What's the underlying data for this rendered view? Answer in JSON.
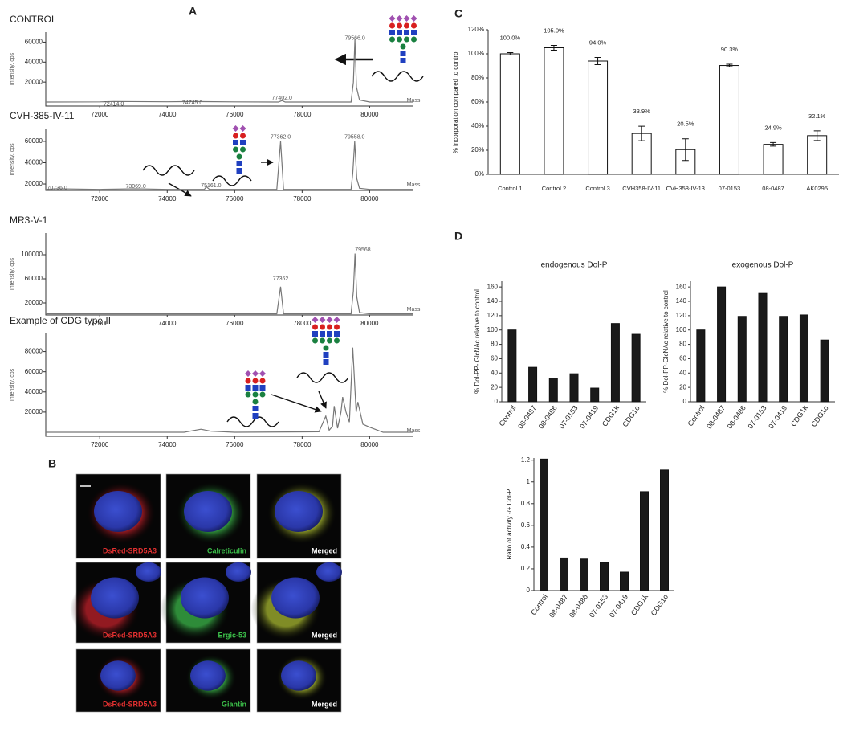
{
  "panel_labels": [
    "A",
    "B",
    "C",
    "D"
  ],
  "microscopy": {
    "labels": [
      "DsRed-SRD5A3",
      "Calreticulin",
      "Merged",
      "DsRed-SRD5A3",
      "Ergic-53",
      "Merged",
      "DsRed-SRD5A3",
      "Giantin",
      "Merged"
    ]
  },
  "chart_data": [
    {
      "type": "line",
      "title": "CONTROL",
      "y_label": "Intensity, cps",
      "x_label": "Mass",
      "color": "#777777",
      "x": [
        70400,
        72000,
        72414,
        74000,
        74745,
        76000,
        77300,
        77402,
        77500,
        79450,
        79520,
        79566,
        79610,
        79700,
        80000,
        81300
      ],
      "values": [
        0,
        200,
        600,
        300,
        500,
        200,
        0,
        1500,
        0,
        0,
        20000,
        63000,
        15000,
        2000,
        0,
        0
      ],
      "xlim": [
        70400,
        81300
      ],
      "ylim": [
        -4000,
        70000
      ],
      "xticks": [
        72000,
        74000,
        76000,
        78000,
        80000
      ],
      "yticks": [
        20000,
        40000,
        60000
      ],
      "annotations": [
        {
          "label": "79566.0",
          "x": 79566,
          "y": 64000
        },
        {
          "label": "72414.0",
          "x": 72414,
          "y": -2000
        },
        {
          "label": "74745.0",
          "x": 74745,
          "y": -1000
        },
        {
          "label": "77402.0",
          "x": 77402,
          "y": 4000
        }
      ]
    },
    {
      "type": "line",
      "title": "CVH-385-IV-11",
      "y_label": "Intensity, cps",
      "x_label": "Mass",
      "color": "#777777",
      "x": [
        70400,
        70736,
        72000,
        73069,
        74000,
        75100,
        75161,
        75250,
        76000,
        77250,
        77362,
        77450,
        79450,
        79500,
        79558,
        79620,
        79700,
        80000,
        81300
      ],
      "values": [
        15000,
        15500,
        15000,
        15500,
        15000,
        15000,
        17500,
        15000,
        15000,
        15000,
        60000,
        15000,
        15000,
        30000,
        60000,
        25000,
        16000,
        15000,
        15000
      ],
      "xlim": [
        70400,
        81300
      ],
      "ylim": [
        14000,
        72000
      ],
      "xticks": [
        72000,
        74000,
        76000,
        78000,
        80000
      ],
      "yticks": [
        20000,
        40000,
        60000
      ],
      "annotations": [
        {
          "label": "77362.0",
          "x": 77362,
          "y": 64000
        },
        {
          "label": "79558.0",
          "x": 79558,
          "y": 64000
        },
        {
          "label": "75161.0",
          "x": 75300,
          "y": 18500
        },
        {
          "label": "70736.0",
          "x": 70736,
          "y": 16000
        },
        {
          "label": "73069.0",
          "x": 73069,
          "y": 17500
        }
      ]
    },
    {
      "type": "line",
      "title": "MR3-V-1",
      "y_label": "Intensity, cps",
      "x_label": "Mass",
      "color": "#777777",
      "x": [
        70400,
        74000,
        77250,
        77362,
        77450,
        79450,
        79520,
        79568,
        79620,
        79700,
        80000,
        81300
      ],
      "values": [
        2000,
        2000,
        2000,
        47000,
        2000,
        2000,
        40000,
        102000,
        30000,
        4000,
        2000,
        2000
      ],
      "xlim": [
        70400,
        81300
      ],
      "ylim": [
        0,
        136000
      ],
      "xticks": [
        72000,
        74000,
        76000,
        78000,
        80000
      ],
      "yticks": [
        20000,
        60000,
        100000
      ],
      "annotations": [
        {
          "label": "79568",
          "x": 79800,
          "y": 108000
        },
        {
          "label": "77362",
          "x": 77362,
          "y": 60000
        }
      ]
    },
    {
      "type": "line",
      "title": "Example of CDG type II",
      "y_label": "Intensity, cps",
      "x_label": "Mass",
      "color": "#777777",
      "x": [
        70400,
        74500,
        75000,
        75300,
        76000,
        78500,
        78700,
        78800,
        78900,
        78950,
        79050,
        79150,
        79200,
        79300,
        79400,
        79500,
        79600,
        79650,
        79800,
        80000,
        80400,
        81300
      ],
      "values": [
        0,
        0,
        3000,
        1000,
        0,
        500,
        16000,
        2000,
        6000,
        26000,
        4000,
        20000,
        35000,
        20000,
        10000,
        84000,
        20000,
        30000,
        8000,
        5000,
        0,
        0
      ],
      "xlim": [
        70400,
        81300
      ],
      "ylim": [
        -4000,
        98000
      ],
      "xticks": [
        72000,
        74000,
        76000,
        78000,
        80000
      ],
      "yticks": [
        20000,
        40000,
        60000,
        80000
      ]
    },
    {
      "type": "bar",
      "y_label": "% incorporation compared to control",
      "color": "#ffffff",
      "categories": [
        "Control 1",
        "Control 2",
        "Control 3",
        "CVH358-IV-11",
        "CVH358-IV-13",
        "07-0153",
        "08-0487",
        "AK0295"
      ],
      "values": [
        100,
        105,
        94,
        33.9,
        20.5,
        90.3,
        24.9,
        32.1
      ],
      "value_labels": [
        "100.0%",
        "105.0%",
        "94.0%",
        "33.9%",
        "20.5%",
        "90.3%",
        "24.9%",
        "32.1%"
      ],
      "errors": [
        1,
        2,
        3,
        6,
        9,
        1,
        1.5,
        4
      ],
      "ylim": [
        0,
        120
      ],
      "yticks": [
        {
          "value": 0,
          "label": "0%"
        },
        {
          "value": 20,
          "label": "20%"
        },
        {
          "value": 40,
          "label": "40%"
        },
        {
          "value": 60,
          "label": "60%"
        },
        {
          "value": 80,
          "label": "80%"
        },
        {
          "value": 100,
          "label": "100%"
        },
        {
          "value": 120,
          "label": "120%"
        }
      ]
    },
    {
      "type": "bar",
      "title": "endogenous Dol-P",
      "y_label": "% Dol-PP- GlcNAc  relative to control",
      "color": "#1a1a1a",
      "categories": [
        "Control",
        "08-0487",
        "08-0486",
        "07-0153",
        "07-0419",
        "CDG1k",
        "CDG1o"
      ],
      "values": [
        100,
        48,
        33,
        39,
        19,
        109,
        94
      ],
      "ylim": [
        0,
        168
      ],
      "yticks": [
        0,
        20,
        40,
        60,
        80,
        100,
        120,
        140,
        160
      ]
    },
    {
      "type": "bar",
      "title": "exogenous Dol-P",
      "y_label": "% Dol-PP-GlcNAc  relative to control",
      "color": "#1a1a1a",
      "categories": [
        "Control",
        "08-0487",
        "08-0486",
        "07-0153",
        "07-0419",
        "CDG1k",
        "CDG1o"
      ],
      "values": [
        100,
        160,
        119,
        151,
        119,
        121,
        86
      ],
      "ylim": [
        0,
        168
      ],
      "yticks": [
        0,
        20,
        40,
        60,
        80,
        100,
        120,
        140,
        160
      ]
    },
    {
      "type": "bar",
      "y_label": "Ratio of activity -/+ Dol-P",
      "color": "#1a1a1a",
      "categories": [
        "Control",
        "08-0487",
        "08-0486",
        "07-0153",
        "07-0419",
        "CDG1k",
        "CDG1o"
      ],
      "values": [
        1.21,
        0.3,
        0.29,
        0.26,
        0.17,
        0.91,
        1.11
      ],
      "ylim": [
        0,
        1.22
      ],
      "yticks": [
        0,
        0.2,
        0.4,
        0.6,
        0.8,
        1,
        1.2
      ]
    }
  ]
}
